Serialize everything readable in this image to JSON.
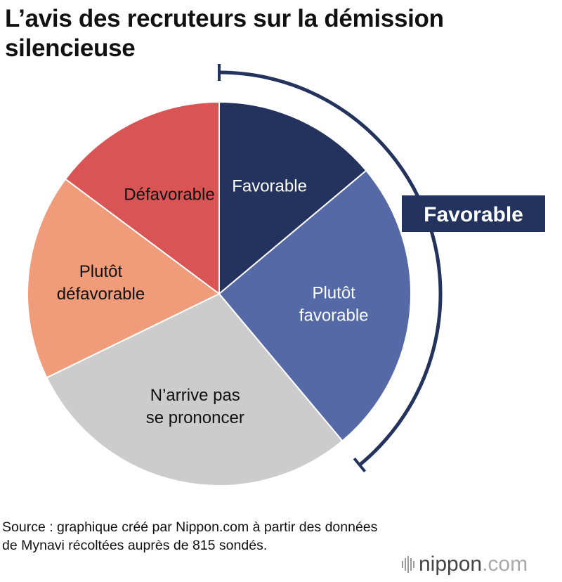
{
  "title": "L’avis des recruteurs sur la démission silencieuse",
  "source": "Source : graphique créé par Nippon.com à partir des données de Mynavi récoltées auprès de 815 sondés.",
  "logo": {
    "text": "nippon",
    "suffix": ".com"
  },
  "chart_data": {
    "type": "pie",
    "title": "L’avis des recruteurs sur la démission silencieuse",
    "start": "top",
    "direction": "clockwise",
    "slices": [
      {
        "label": [
          "Favorable"
        ],
        "value": 13.9,
        "color": "#24335d",
        "text_color": "#ffffff"
      },
      {
        "label": [
          "Plutôt",
          "favorable"
        ],
        "value": 25.0,
        "color": "#5569a6",
        "text_color": "#ffffff"
      },
      {
        "label": [
          "N’arrive pas",
          "se prononcer"
        ],
        "value": 28.9,
        "color": "#cccccc",
        "text_color": "#111111"
      },
      {
        "label": [
          "Plutôt",
          "défavorable"
        ],
        "value": 17.4,
        "color": "#f09b79",
        "text_color": "#111111"
      },
      {
        "label": [
          "Défavorable"
        ],
        "value": 14.8,
        "color": "#d95454",
        "text_color": "#111111"
      }
    ],
    "bracket": {
      "label": "Favorable",
      "covers": [
        "Favorable",
        "Plutôt favorable"
      ],
      "color": "#24335d"
    }
  }
}
